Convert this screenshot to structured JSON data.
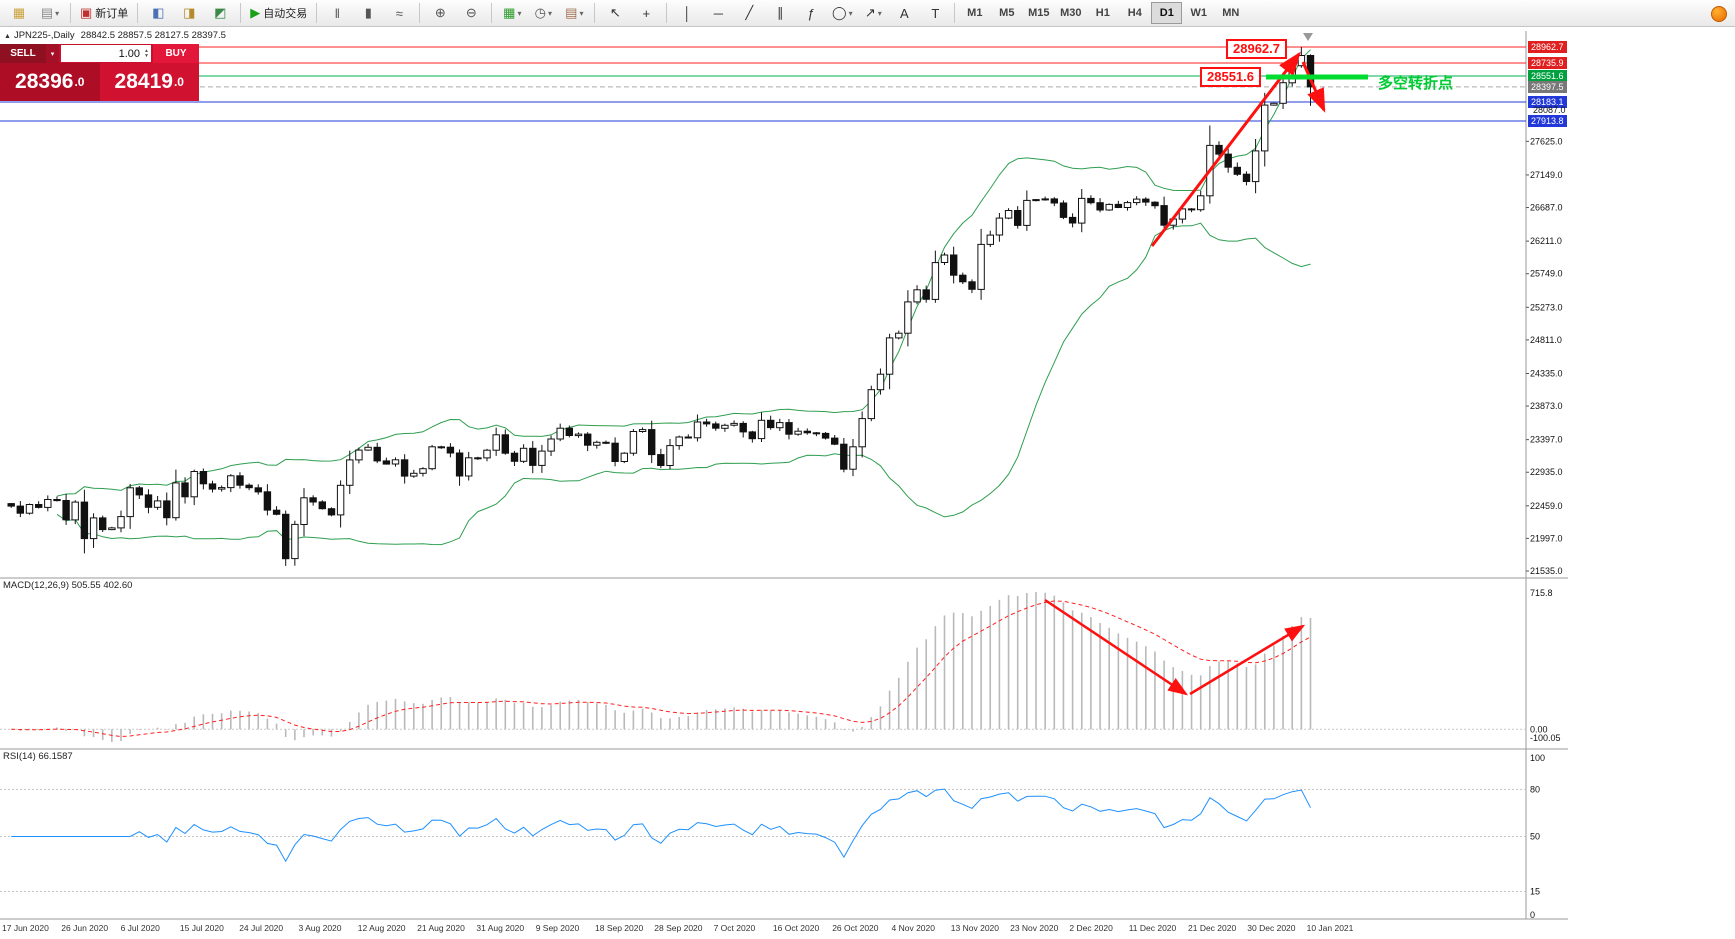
{
  "toolbar": {
    "groups": [
      {
        "items": [
          {
            "name": "new-chart-icon",
            "glyph": "▦",
            "color": "#caa23a"
          },
          {
            "name": "profiles-icon",
            "glyph": "▤",
            "color": "#8a8a8a",
            "dropdown": true
          }
        ]
      },
      {
        "items": [
          {
            "name": "new-order-button",
            "glyph": "▣",
            "color": "#c03030",
            "label": "新订单"
          }
        ]
      },
      {
        "items": [
          {
            "name": "metaeditor-icon",
            "glyph": "◧",
            "color": "#4a6fb5"
          },
          {
            "name": "alerts-icon",
            "glyph": "◨",
            "color": "#b58a2a"
          },
          {
            "name": "strategy-tester-icon",
            "glyph": "◩",
            "color": "#3a8a4a"
          }
        ]
      },
      {
        "items": [
          {
            "name": "autotrading-button",
            "glyph": "▶",
            "color": "#18a018",
            "label": "自动交易"
          }
        ]
      },
      {
        "items": [
          {
            "name": "bar-chart-icon",
            "glyph": "‖",
            "color": "#555555"
          },
          {
            "name": "candlestick-chart-icon",
            "glyph": "▮",
            "color": "#555555"
          },
          {
            "name": "line-chart-icon",
            "glyph": "≈",
            "color": "#555555"
          }
        ]
      },
      {
        "items": [
          {
            "name": "zoom-in-icon",
            "glyph": "⊕",
            "color": "#555555"
          },
          {
            "name": "zoom-out-icon",
            "glyph": "⊖",
            "color": "#555555"
          }
        ]
      },
      {
        "items": [
          {
            "name": "indicators-icon",
            "glyph": "▦",
            "color": "#2a9a2a",
            "dropdown": true
          },
          {
            "name": "periods-icon",
            "glyph": "◷",
            "color": "#555555",
            "dropdown": true
          },
          {
            "name": "templates-icon",
            "glyph": "▤",
            "color": "#a07050",
            "dropdown": true
          }
        ]
      },
      {
        "items": [
          {
            "name": "cursor-icon",
            "glyph": "↖",
            "color": "#333333"
          },
          {
            "name": "crosshair-icon",
            "glyph": "+",
            "color": "#333333"
          }
        ]
      },
      {
        "items": [
          {
            "name": "vertical-line-icon",
            "glyph": "│",
            "color": "#333333"
          },
          {
            "name": "horizontal-line-icon",
            "glyph": "─",
            "color": "#333333"
          },
          {
            "name": "trendline-icon",
            "glyph": "╱",
            "color": "#333333"
          },
          {
            "name": "channel-icon",
            "glyph": "∥",
            "color": "#333333"
          },
          {
            "name": "fibonacci-icon",
            "glyph": "ƒ",
            "color": "#333333"
          },
          {
            "name": "shapes-icon",
            "glyph": "◯",
            "color": "#333333",
            "dropdown": true
          },
          {
            "name": "arrows-icon",
            "glyph": "↗",
            "color": "#333333",
            "dropdown": true
          },
          {
            "name": "text-icon",
            "glyph": "A",
            "color": "#333333"
          },
          {
            "name": "text-label-icon",
            "glyph": "T",
            "color": "#333333"
          }
        ]
      }
    ],
    "timeframes": [
      "M1",
      "M5",
      "M15",
      "M30",
      "H1",
      "H4",
      "D1",
      "W1",
      "MN"
    ],
    "active_timeframe": "D1"
  },
  "chart_header": {
    "trend_glyph": "▲",
    "symbol": "JPN225-,Daily",
    "ohlc": "28842.5 28857.5 28127.5 28397.5"
  },
  "trade_panel": {
    "sell_label": "SELL",
    "buy_label": "BUY",
    "lot": "1.00",
    "sell_price_main": "28396",
    "sell_price_sup": ".0",
    "buy_price_main": "28419",
    "buy_price_sup": ".0"
  },
  "annotations": {
    "high_label": "28962.7",
    "pivot_label": "28551.6",
    "pivot_text": "多空转折点"
  },
  "price_scale": {
    "levels": [
      {
        "value": "28962.7",
        "type": "red"
      },
      {
        "value": "28735.9",
        "type": "red"
      },
      {
        "value": "28551.6",
        "type": "green"
      },
      {
        "value": "28397.5",
        "type": "bid"
      },
      {
        "value": "28183.1",
        "type": "blue"
      },
      {
        "value": "28087.0",
        "type": "plain"
      },
      {
        "value": "27913.8",
        "type": "blue"
      }
    ],
    "ticks": [
      "27625.0",
      "27149.0",
      "26687.0",
      "26211.0",
      "25749.0",
      "25273.0",
      "24811.0",
      "24335.0",
      "23873.0",
      "23397.0",
      "22935.0",
      "22459.0",
      "21997.0",
      "21535.0"
    ]
  },
  "macd": {
    "label": "MACD(12,26,9) 505.55 402.60",
    "scale": [
      "715.8",
      "0.00",
      "-100.05"
    ]
  },
  "rsi": {
    "label": "RSI(14) 66.1587",
    "scale": [
      "100",
      "80",
      "50",
      "15",
      "0"
    ],
    "levels": [
      80,
      50,
      15
    ]
  },
  "x_axis": [
    "17 Jun 2020",
    "26 Jun 2020",
    "6 Jul 2020",
    "15 Jul 2020",
    "24 Jul 2020",
    "3 Aug 2020",
    "12 Aug 2020",
    "21 Aug 2020",
    "31 Aug 2020",
    "9 Sep 2020",
    "18 Sep 2020",
    "28 Sep 2020",
    "7 Oct 2020",
    "16 Oct 2020",
    "26 Oct 2020",
    "4 Nov 2020",
    "13 Nov 2020",
    "23 Nov 2020",
    "2 Dec 2020",
    "11 Dec 2020",
    "21 Dec 2020",
    "30 Dec 2020",
    "10 Jan 2021"
  ],
  "chart_data": {
    "type": "candlestick",
    "symbol": "JPN225",
    "timeframe": "Daily",
    "y_axis_range": {
      "top": 28962.7,
      "bottom": 21535.0
    },
    "closes": [
      22455,
      22355,
      22478,
      22437,
      22549,
      22534,
      22260,
      22512,
      21995,
      22288,
      22122,
      22146,
      22306,
      22714,
      22614,
      22438,
      22529,
      22291,
      22784,
      22587,
      22945,
      22770,
      22696,
      22717,
      22884,
      22751,
      22715,
      22657,
      22397,
      22339,
      21710,
      22195,
      22573,
      22514,
      22418,
      22330,
      22750,
      23110,
      23249,
      23289,
      23096,
      23051,
      23111,
      22880,
      22920,
      22985,
      23296,
      23290,
      23208,
      22882,
      23140,
      23138,
      23247,
      23466,
      23205,
      23090,
      23274,
      23032,
      23235,
      23406,
      23559,
      23455,
      23476,
      23319,
      23360,
      23346,
      23087,
      23205,
      23512,
      23539,
      23185,
      23030,
      23312,
      23434,
      23423,
      23647,
      23620,
      23559,
      23601,
      23627,
      23507,
      23411,
      23671,
      23567,
      23639,
      23474,
      23516,
      23494,
      23485,
      23419,
      23332,
      22977,
      23295,
      23695,
      24105,
      24325,
      24839,
      24906,
      25349,
      25521,
      25386,
      25907,
      26014,
      25728,
      25634,
      25527,
      26165,
      26297,
      26537,
      26645,
      26434,
      26788,
      26800,
      26809,
      26751,
      26547,
      26467,
      26817,
      26756,
      26653,
      26732,
      26688,
      26757,
      26806,
      26763,
      26714,
      26436,
      26524,
      26668,
      26657,
      26854,
      27568,
      27444,
      27258,
      27159,
      27055,
      27490,
      28139,
      28164,
      28456,
      28698,
      28842
    ],
    "last_ohlc": {
      "open": 28842.5,
      "high": 28857.5,
      "low": 28127.5,
      "close": 28397.5
    },
    "recent_high": 28962.7,
    "bollinger": {
      "period": 20,
      "deviation": 2
    },
    "macd_params": {
      "fast": 12,
      "slow": 26,
      "signal": 9,
      "last_macd": 505.55,
      "last_signal": 402.6
    },
    "rsi_params": {
      "period": 14,
      "last": 66.1587
    },
    "level_lines": [
      {
        "price": 28962.7,
        "color": "#ff2020",
        "style": "solid"
      },
      {
        "price": 28735.9,
        "color": "#ff2020",
        "style": "solid"
      },
      {
        "price": 28551.6,
        "color": "#00b050",
        "style": "solid"
      },
      {
        "price": 28397.5,
        "color": "#aaaaaa",
        "style": "dash"
      },
      {
        "price": 28183.1,
        "color": "#2238d8",
        "style": "solid"
      },
      {
        "price": 27913.8,
        "color": "#2238d8",
        "style": "solid"
      }
    ]
  }
}
